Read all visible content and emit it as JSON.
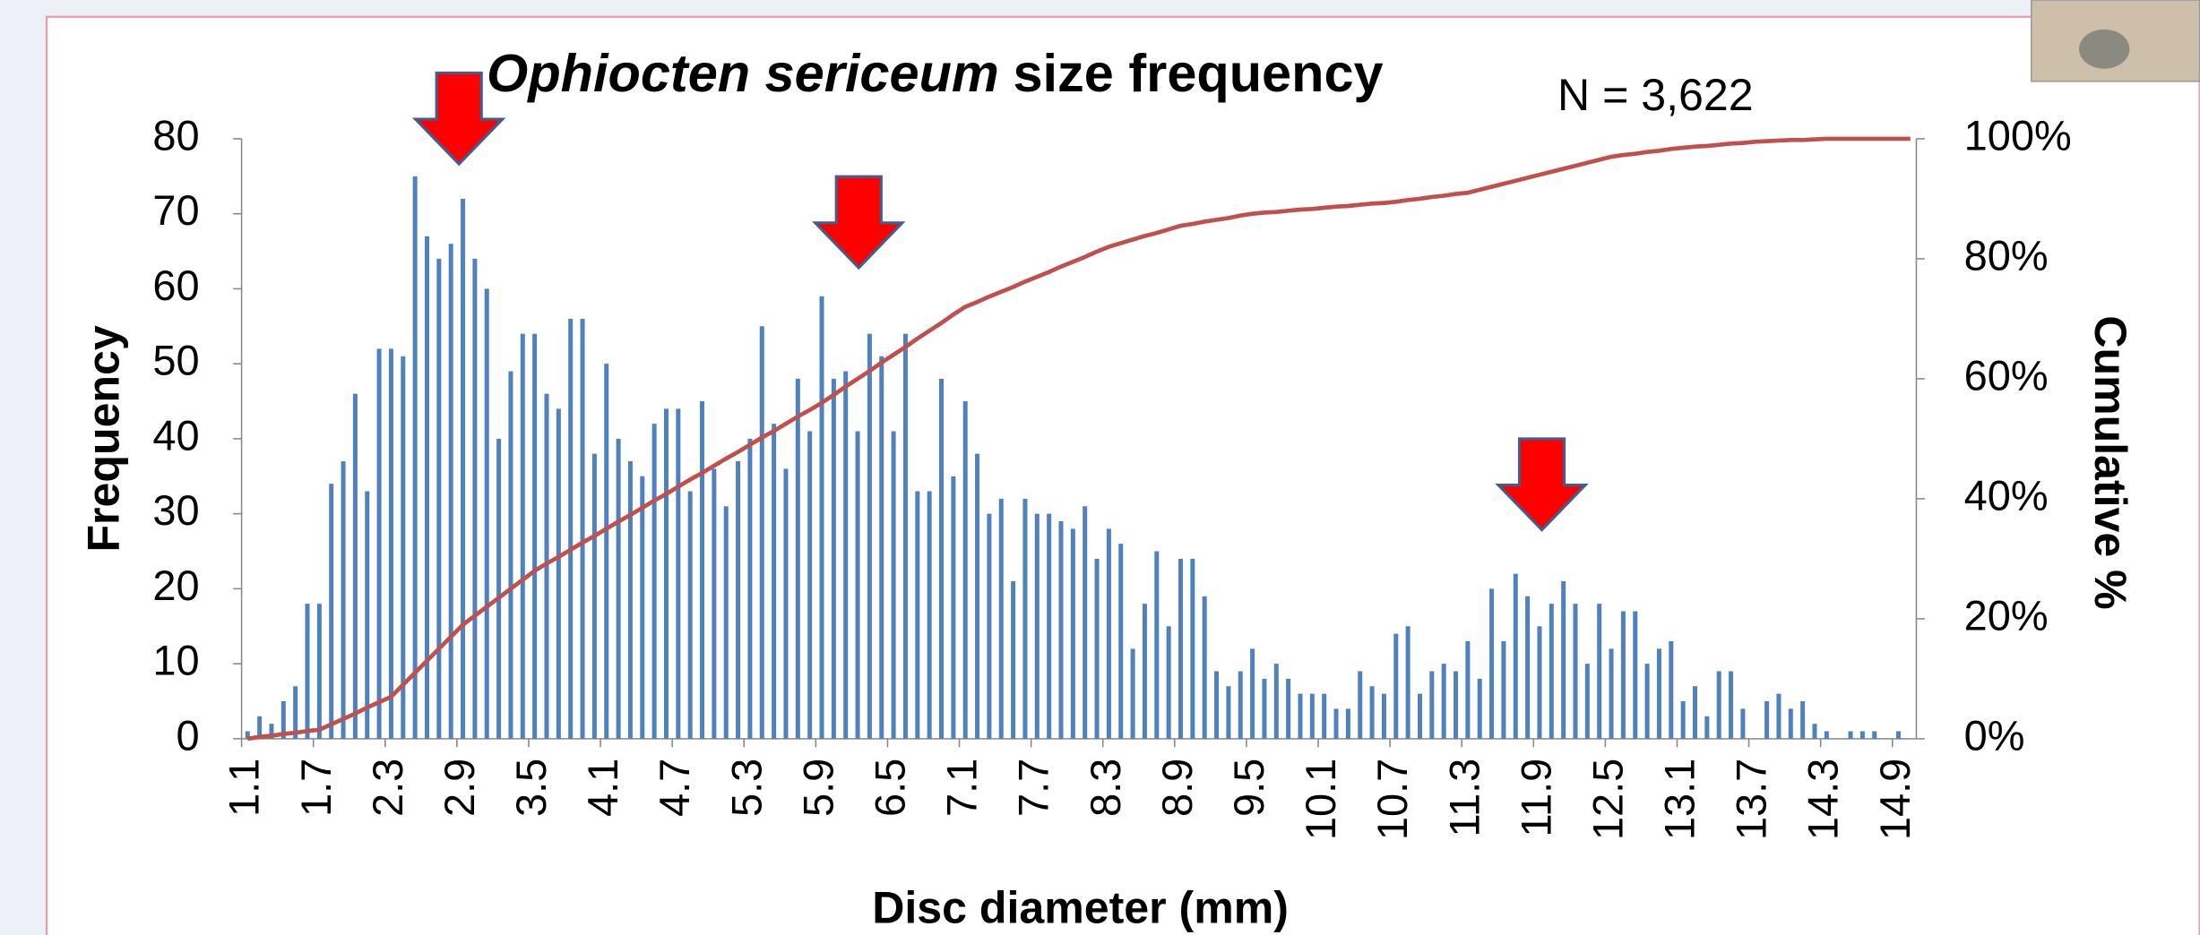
{
  "chart_data": {
    "type": "bar",
    "title_species": "Ophiocten sericeum",
    "title_rest": "size frequency",
    "annotation": "N = 3,622",
    "x_label": "Disc diameter (mm)",
    "y_label": "Frequency",
    "y2_label": "Cumulative  %",
    "categories": [
      "1.1",
      null,
      null,
      null,
      null,
      null,
      "1.7",
      null,
      null,
      null,
      null,
      null,
      "2.3",
      null,
      null,
      null,
      null,
      null,
      "2.9",
      null,
      null,
      null,
      null,
      null,
      "3.5",
      null,
      null,
      null,
      null,
      null,
      "4.1",
      null,
      null,
      null,
      null,
      null,
      "4.7",
      null,
      null,
      null,
      null,
      null,
      "5.3",
      null,
      null,
      null,
      null,
      null,
      "5.9",
      null,
      null,
      null,
      null,
      null,
      "6.5",
      null,
      null,
      null,
      null,
      null,
      "7.1",
      null,
      null,
      null,
      null,
      null,
      "7.7",
      null,
      null,
      null,
      null,
      null,
      "8.3",
      null,
      null,
      null,
      null,
      null,
      "8.9",
      null,
      null,
      null,
      null,
      null,
      "9.5",
      null,
      null,
      null,
      null,
      null,
      "10.1",
      null,
      null,
      null,
      null,
      null,
      "10.7",
      null,
      null,
      null,
      null,
      null,
      "11.3",
      null,
      null,
      null,
      null,
      null,
      "11.9",
      null,
      null,
      null,
      null,
      null,
      "12.5",
      null,
      null,
      null,
      null,
      null,
      "13.1",
      null,
      null,
      null,
      null,
      null,
      "13.7",
      null,
      null,
      null,
      null,
      null,
      "14.3",
      null,
      null,
      null,
      null,
      null,
      "14.9",
      null
    ],
    "series": [
      {
        "color": "#4f81bd",
        "values": [
          1,
          3,
          2,
          5,
          7,
          18,
          18,
          34,
          37,
          46,
          33,
          52,
          52,
          51,
          75,
          67,
          64,
          66,
          72,
          64,
          60,
          40,
          49,
          54,
          54,
          46,
          44,
          56,
          56,
          38,
          50,
          40,
          37,
          35,
          42,
          44,
          44,
          33,
          45,
          36,
          31,
          37,
          40,
          55,
          42,
          36,
          48,
          41,
          59,
          48,
          49,
          41,
          54,
          51,
          41,
          54,
          33,
          33,
          48,
          35,
          45,
          38,
          30,
          32,
          21,
          32,
          30,
          30,
          29,
          28,
          31,
          24,
          28,
          26,
          12,
          18,
          25,
          15,
          24,
          24,
          19,
          9,
          7,
          9,
          12,
          8,
          10,
          8,
          6,
          6,
          6,
          4,
          4,
          9,
          7,
          6,
          14,
          15,
          6,
          9,
          10,
          9,
          13,
          8,
          20,
          13,
          22,
          19,
          15,
          18,
          21,
          18,
          10,
          18,
          12,
          17,
          17,
          10,
          12,
          13,
          5,
          7,
          3,
          9,
          9,
          4,
          0,
          5,
          6,
          4,
          5,
          2,
          1,
          0,
          1,
          1,
          1,
          0,
          1,
          0
        ]
      },
      {
        "color": "#c0504d",
        "axis": "y2",
        "values": [
          0,
          0.3,
          0.5,
          0.8,
          1,
          1.3,
          1.5,
          2.4,
          3.3,
          4.2,
          5.2,
          6.1,
          7,
          9,
          11,
          13,
          15,
          17,
          19,
          20.5,
          22,
          23.5,
          25,
          26.5,
          28,
          29.2,
          30.3,
          31.5,
          32.7,
          33.8,
          35,
          36.2,
          37.3,
          38.5,
          39.7,
          40.8,
          42,
          43.2,
          44.3,
          45.5,
          46.7,
          47.8,
          49,
          50.2,
          51.3,
          52.5,
          53.7,
          54.8,
          56,
          57.3,
          58.7,
          60,
          61.3,
          62.7,
          64,
          65.3,
          66.7,
          68,
          69.3,
          70.7,
          72,
          72.8,
          73.7,
          74.5,
          75.3,
          76.2,
          77,
          77.8,
          78.7,
          79.5,
          80.3,
          81.2,
          82,
          82.6,
          83.2,
          83.8,
          84.3,
          84.9,
          85.5,
          85.8,
          86.2,
          86.5,
          86.8,
          87.2,
          87.5,
          87.7,
          87.8,
          88,
          88.2,
          88.3,
          88.5,
          88.7,
          88.8,
          89,
          89.2,
          89.3,
          89.5,
          89.8,
          90,
          90.3,
          90.5,
          90.8,
          91,
          91.5,
          92,
          92.5,
          93,
          93.5,
          94,
          94.5,
          95,
          95.5,
          96,
          96.5,
          97,
          97.3,
          97.5,
          97.8,
          98,
          98.3,
          98.5,
          98.7,
          98.8,
          99,
          99.2,
          99.3,
          99.5,
          99.6,
          99.7,
          99.8,
          99.8,
          99.9,
          100,
          100,
          100,
          100,
          100,
          100,
          100,
          100
        ]
      }
    ],
    "ylim": [
      0,
      80
    ],
    "yticks": [
      0,
      10,
      20,
      30,
      40,
      50,
      60,
      70,
      80
    ],
    "y2lim": [
      0,
      100
    ],
    "y2ticks": [
      {
        "value": 0,
        "label": "0%"
      },
      {
        "value": 20,
        "label": "20%"
      },
      {
        "value": 40,
        "label": "40%"
      },
      {
        "value": 60,
        "label": "60%"
      },
      {
        "value": 80,
        "label": "80%"
      },
      {
        "value": 100,
        "label": "100%"
      }
    ]
  }
}
